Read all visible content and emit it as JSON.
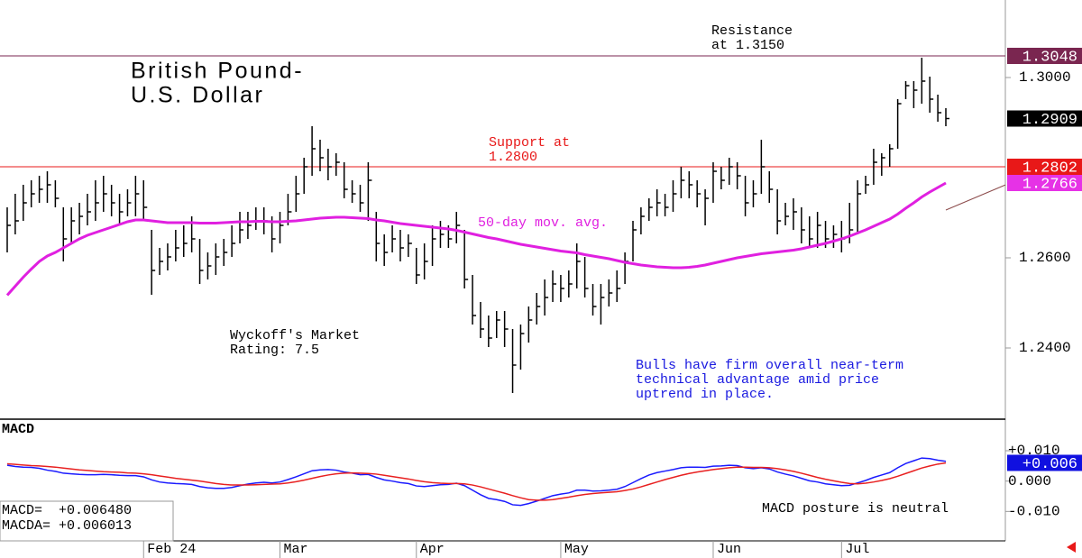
{
  "chart_data": [
    {
      "type": "ohlc",
      "title": [
        "British Pound-",
        "U.S. Dollar"
      ],
      "categories": [
        null,
        null,
        null,
        null,
        null,
        null,
        null,
        null,
        null,
        null,
        null,
        null,
        null,
        null,
        null,
        null,
        null,
        "Feb 24",
        null,
        null,
        null,
        null,
        null,
        null,
        null,
        null,
        null,
        null,
        null,
        null,
        null,
        null,
        null,
        null,
        "Mar",
        null,
        null,
        null,
        null,
        null,
        null,
        null,
        null,
        null,
        null,
        null,
        null,
        null,
        null,
        null,
        null,
        "Apr",
        null,
        null,
        null,
        null,
        null,
        null,
        null,
        null,
        null,
        null,
        null,
        null,
        null,
        null,
        null,
        null,
        null,
        "May",
        null,
        null,
        null,
        null,
        null,
        null,
        null,
        null,
        null,
        null,
        null,
        null,
        null,
        null,
        null,
        null,
        null,
        null,
        "Jun",
        null,
        null,
        null,
        null,
        null,
        null,
        null,
        null,
        null,
        null,
        null,
        null,
        null,
        null,
        null,
        "Jul",
        null,
        null,
        null,
        null,
        null,
        null,
        null,
        null,
        null,
        null,
        null,
        null,
        null
      ],
      "high": [
        1.2712,
        1.2742,
        1.2762,
        1.2772,
        1.2782,
        1.2792,
        1.2772,
        1.2712,
        1.2712,
        1.2722,
        1.2742,
        1.2772,
        1.2782,
        1.2762,
        1.2742,
        1.2752,
        1.2782,
        1.2772,
        1.2662,
        1.2622,
        1.2632,
        1.2662,
        1.2672,
        1.2692,
        1.2642,
        1.2612,
        1.2632,
        1.2642,
        1.2672,
        1.2702,
        1.2702,
        1.2712,
        1.2712,
        1.2692,
        1.2702,
        1.2742,
        1.2782,
        1.2822,
        1.2892,
        1.2862,
        1.2842,
        1.2832,
        1.2812,
        1.2772,
        1.2762,
        1.2812,
        1.2702,
        1.2652,
        1.2672,
        1.2662,
        1.2652,
        1.2622,
        1.2632,
        1.2672,
        1.2682,
        1.2672,
        1.2702,
        1.2662,
        1.2562,
        1.2502,
        1.2472,
        1.2482,
        1.2482,
        1.2442,
        1.2452,
        1.2492,
        1.2522,
        1.2552,
        1.2572,
        1.2562,
        1.2572,
        1.2632,
        1.2602,
        1.2542,
        1.2542,
        1.2552,
        1.2572,
        1.2612,
        1.2682,
        1.2712,
        1.2732,
        1.2752,
        1.2742,
        1.2772,
        1.2802,
        1.2792,
        1.2772,
        1.2752,
        1.2812,
        1.2802,
        1.2822,
        1.2812,
        1.2782,
        1.2772,
        1.2862,
        1.2792,
        1.2752,
        1.2722,
        1.2732,
        1.2712,
        1.2692,
        1.2702,
        1.2682,
        1.2672,
        1.2682,
        1.2722,
        1.2772,
        1.2782,
        1.2842,
        1.2832,
        1.2852,
        1.2952,
        1.2992,
        1.2992,
        1.3044,
        1.3002,
        1.2962,
        1.2932
      ],
      "low": [
        1.2612,
        1.2652,
        1.2682,
        1.2712,
        1.2722,
        1.2722,
        1.2712,
        1.2592,
        1.2632,
        1.2652,
        1.2672,
        1.2682,
        1.2702,
        1.2692,
        1.2672,
        1.2692,
        1.2692,
        1.2682,
        1.2518,
        1.2562,
        1.2572,
        1.2592,
        1.2602,
        1.2612,
        1.2542,
        1.2552,
        1.2562,
        1.2582,
        1.2602,
        1.2632,
        1.2642,
        1.2662,
        1.2652,
        1.2612,
        1.2632,
        1.2672,
        1.2702,
        1.2742,
        1.2782,
        1.2792,
        1.2772,
        1.2782,
        1.2732,
        1.2722,
        1.2702,
        1.2682,
        1.2592,
        1.2582,
        1.2612,
        1.2592,
        1.2602,
        1.2542,
        1.2552,
        1.2582,
        1.2622,
        1.2622,
        1.2632,
        1.2532,
        1.2452,
        1.2422,
        1.2402,
        1.2422,
        1.2402,
        1.23,
        1.2352,
        1.2412,
        1.2452,
        1.2472,
        1.2502,
        1.2502,
        1.2512,
        1.2532,
        1.2512,
        1.2472,
        1.2452,
        1.2492,
        1.2502,
        1.2542,
        1.2592,
        1.2652,
        1.2682,
        1.2692,
        1.2692,
        1.2702,
        1.2732,
        1.2732,
        1.2712,
        1.2672,
        1.2722,
        1.2752,
        1.2762,
        1.2752,
        1.2692,
        1.2712,
        1.2742,
        1.2722,
        1.2652,
        1.2672,
        1.2662,
        1.2632,
        1.2622,
        1.2622,
        1.2622,
        1.2622,
        1.2612,
        1.2632,
        1.2652,
        1.2742,
        1.2762,
        1.2782,
        1.2802,
        1.2842,
        1.2952,
        1.2932,
        1.2942,
        1.2922,
        1.2902,
        1.2892
      ],
      "close": [
        1.2672,
        1.2682,
        1.2722,
        1.2742,
        1.2752,
        1.2762,
        1.2732,
        1.2642,
        1.2682,
        1.2692,
        1.2702,
        1.2722,
        1.2742,
        1.2722,
        1.2702,
        1.2722,
        1.2742,
        1.2712,
        1.2572,
        1.2592,
        1.2602,
        1.2622,
        1.2632,
        1.2642,
        1.2572,
        1.2582,
        1.2602,
        1.2612,
        1.2632,
        1.2662,
        1.2672,
        1.2682,
        1.2682,
        1.2642,
        1.2672,
        1.2702,
        1.2742,
        1.2802,
        1.2842,
        1.2822,
        1.2802,
        1.2812,
        1.2752,
        1.2742,
        1.2722,
        1.2772,
        1.2632,
        1.2612,
        1.2642,
        1.2622,
        1.2632,
        1.2562,
        1.2592,
        1.2642,
        1.2652,
        1.2642,
        1.2672,
        1.2552,
        1.2472,
        1.2442,
        1.2422,
        1.2462,
        1.2442,
        1.2362,
        1.2432,
        1.2462,
        1.2492,
        1.2512,
        1.2542,
        1.2532,
        1.2542,
        1.2592,
        1.2532,
        1.2492,
        1.2512,
        1.2522,
        1.2532,
        1.2592,
        1.2662,
        1.2692,
        1.2712,
        1.2722,
        1.2712,
        1.2742,
        1.2772,
        1.2762,
        1.2742,
        1.2732,
        1.2792,
        1.2772,
        1.2802,
        1.2782,
        1.2722,
        1.2742,
        1.2802,
        1.2752,
        1.2682,
        1.2692,
        1.2702,
        1.2662,
        1.2642,
        1.2672,
        1.2642,
        1.2652,
        1.2642,
        1.2662,
        1.2742,
        1.2762,
        1.2812,
        1.2822,
        1.2842,
        1.2942,
        1.2982,
        1.2972,
        1.2992,
        1.2952,
        1.2922,
        1.2909
      ],
      "color": "#000000",
      "series": [
        {
          "name": "50-day mov. avg.",
          "color": "#e020e0",
          "values": [
            1.2517,
            1.2537,
            1.2557,
            1.2575,
            1.2592,
            1.2604,
            1.2612,
            1.2622,
            1.2632,
            1.2642,
            1.265,
            1.2656,
            1.2662,
            1.2668,
            1.2674,
            1.268,
            1.2684,
            1.2684,
            1.2682,
            1.268,
            1.2678,
            1.2678,
            1.2678,
            1.2678,
            1.2677,
            1.2677,
            1.2677,
            1.2678,
            1.2679,
            1.268,
            1.268,
            1.2681,
            1.2681,
            1.268,
            1.268,
            1.2681,
            1.2682,
            1.2684,
            1.2686,
            1.2688,
            1.2689,
            1.269,
            1.269,
            1.2689,
            1.2688,
            1.2687,
            1.2684,
            1.2682,
            1.2679,
            1.2676,
            1.2674,
            1.2672,
            1.267,
            1.2668,
            1.2666,
            1.2664,
            1.2661,
            1.2657,
            1.2653,
            1.2649,
            1.2645,
            1.2642,
            1.2638,
            1.2634,
            1.263,
            1.2627,
            1.2624,
            1.2621,
            1.2618,
            1.2615,
            1.2613,
            1.2611,
            1.2607,
            1.2604,
            1.2601,
            1.2598,
            1.2594,
            1.259,
            1.2587,
            1.2584,
            1.2582,
            1.258,
            1.2579,
            1.2578,
            1.2578,
            1.2579,
            1.2581,
            1.2584,
            1.2588,
            1.2592,
            1.2596,
            1.26,
            1.2603,
            1.2606,
            1.2609,
            1.2611,
            1.2613,
            1.2615,
            1.2617,
            1.262,
            1.2624,
            1.2628,
            1.2632,
            1.2637,
            1.2642,
            1.2648,
            1.2655,
            1.2662,
            1.267,
            1.2678,
            1.2686,
            1.2697,
            1.271,
            1.2722,
            1.2735,
            1.2746,
            1.2756,
            1.2766
          ]
        },
        {
          "color": "#8b4a4a",
          "extend_right": true,
          "values": [
            null,
            null,
            null,
            null,
            null,
            null,
            null,
            null,
            null,
            null,
            null,
            null,
            null,
            null,
            null,
            null,
            null,
            null,
            null,
            null,
            null,
            null,
            null,
            null,
            null,
            null,
            null,
            null,
            null,
            null,
            null,
            null,
            null,
            null,
            null,
            null,
            null,
            null,
            null,
            null,
            null,
            null,
            null,
            null,
            null,
            null,
            null,
            null,
            null,
            null,
            null,
            null,
            null,
            null,
            null,
            null,
            null,
            null,
            null,
            null,
            null,
            null,
            null,
            1.23,
            null,
            null,
            null,
            null,
            null,
            null,
            null,
            null,
            null,
            null,
            null,
            null,
            null,
            null,
            null,
            null,
            null,
            null,
            null,
            null,
            null,
            null,
            null,
            null,
            null,
            null,
            null,
            null,
            null,
            null,
            null,
            null,
            null,
            null,
            null,
            null,
            null,
            null,
            null,
            null,
            null,
            null,
            null,
            null,
            null,
            null,
            null,
            null,
            null,
            null,
            null,
            null,
            null,
            1.2706
          ]
        }
      ],
      "ylim": [
        1.2242,
        1.3172
      ],
      "yticks": [
        {
          "value": 1.3,
          "label": "1.3000"
        },
        {
          "value": 1.26,
          "label": "1.2600"
        },
        {
          "value": 1.24,
          "label": "1.2400"
        }
      ],
      "price_tags": [
        {
          "value": 1.3048,
          "label": "1.3048",
          "color": "#7a2650",
          "line": true
        },
        {
          "value": 1.2909,
          "label": "1.2909",
          "color": "#000000"
        },
        {
          "value": 1.2802,
          "label": "1.2802",
          "color": "#e81818",
          "line": true
        },
        {
          "value": 1.2766,
          "label": "1.2766",
          "color": "#e632e6"
        }
      ],
      "annotations": [
        {
          "lines": [
            "Resistance",
            "at 1.3150"
          ],
          "color": "#000000"
        },
        {
          "lines": [
            "Support at",
            "1.2800"
          ],
          "color": "#e81818"
        },
        {
          "lines": [
            "Wyckoff's Market",
            "Rating: 7.5"
          ],
          "color": "#000000"
        },
        {
          "lines": [
            "Bulls have firm overall near-term",
            "technical advantage amid price",
            "uptrend in place."
          ],
          "color": "#1a1ae0"
        }
      ]
    },
    {
      "type": "line",
      "title": "MACD",
      "series": [
        {
          "color": "#1a1aff",
          "values": [
            0.0052,
            0.0048,
            0.0046,
            0.0045,
            0.0042,
            0.0036,
            0.0032,
            0.0026,
            0.0024,
            0.0022,
            0.0021,
            0.0021,
            0.0022,
            0.0021,
            0.0019,
            0.0018,
            0.0018,
            0.0014,
            0.0004,
            -0.0003,
            -0.0006,
            -0.0008,
            -0.0009,
            -0.0011,
            -0.0018,
            -0.0022,
            -0.0024,
            -0.0024,
            -0.0021,
            -0.0015,
            -0.001,
            -0.0006,
            -0.0004,
            -0.0006,
            -0.0003,
            0.0005,
            0.0014,
            0.0024,
            0.0034,
            0.0037,
            0.0038,
            0.0036,
            0.003,
            0.0026,
            0.0021,
            0.0022,
            0.0012,
            0.0004,
            0.0,
            -0.0005,
            -0.0008,
            -0.0016,
            -0.0018,
            -0.0015,
            -0.0012,
            -0.0011,
            -0.0007,
            -0.0015,
            -0.003,
            -0.0045,
            -0.0057,
            -0.0061,
            -0.0067,
            -0.0078,
            -0.008,
            -0.0074,
            -0.0066,
            -0.0057,
            -0.0048,
            -0.0043,
            -0.0039,
            -0.003,
            -0.003,
            -0.0033,
            -0.0032,
            -0.003,
            -0.0027,
            -0.0018,
            -0.0005,
            0.0008,
            0.002,
            0.0028,
            0.0033,
            0.0038,
            0.0044,
            0.0046,
            0.0046,
            0.0045,
            0.0049,
            0.005,
            0.0052,
            0.0051,
            0.0044,
            0.0041,
            0.0044,
            0.004,
            0.003,
            0.0023,
            0.0017,
            0.0009,
            0.0001,
            -0.0003,
            -0.0009,
            -0.0012,
            -0.0015,
            -0.0014,
            -0.0006,
            0.0002,
            0.0012,
            0.002,
            0.0028,
            0.0044,
            0.0058,
            0.0067,
            0.0076,
            0.0074,
            0.0069,
            0.0065
          ]
        },
        {
          "color": "#e82020",
          "values": [
            0.0057,
            0.0055,
            0.0053,
            0.0051,
            0.005,
            0.0048,
            0.0046,
            0.0043,
            0.004,
            0.0037,
            0.0035,
            0.0033,
            0.0031,
            0.003,
            0.0029,
            0.0027,
            0.0026,
            0.0024,
            0.0021,
            0.0017,
            0.0013,
            0.0009,
            0.0006,
            0.0003,
            0.0,
            -0.0004,
            -0.0008,
            -0.0011,
            -0.0013,
            -0.0013,
            -0.0013,
            -0.0012,
            -0.0011,
            -0.001,
            -0.0009,
            -0.0006,
            -0.0002,
            0.0003,
            0.0009,
            0.0015,
            0.002,
            0.0024,
            0.0026,
            0.0027,
            0.0026,
            0.0025,
            0.0023,
            0.0019,
            0.0015,
            0.0011,
            0.0007,
            0.0002,
            -0.0002,
            -0.0005,
            -0.0007,
            -0.0008,
            -0.0008,
            -0.0009,
            -0.0013,
            -0.0019,
            -0.0026,
            -0.0033,
            -0.004,
            -0.0048,
            -0.0055,
            -0.0061,
            -0.0063,
            -0.0063,
            -0.0061,
            -0.0057,
            -0.0053,
            -0.0048,
            -0.0044,
            -0.0041,
            -0.0039,
            -0.0037,
            -0.0035,
            -0.0031,
            -0.0026,
            -0.0019,
            -0.0011,
            -0.0003,
            0.0005,
            0.0012,
            0.0019,
            0.0025,
            0.003,
            0.0034,
            0.0038,
            0.0041,
            0.0044,
            0.0046,
            0.0046,
            0.0045,
            0.0045,
            0.0044,
            0.0041,
            0.0037,
            0.0032,
            0.0026,
            0.0019,
            0.0012,
            0.0006,
            0.0001,
            -0.0004,
            -0.0008,
            -0.0009,
            -0.0007,
            -0.0003,
            0.0002,
            0.0008,
            0.0016,
            0.0025,
            0.0034,
            0.0043,
            0.005,
            0.0056,
            0.006
          ]
        }
      ],
      "ylim": [
        -0.0197,
        0.0204
      ],
      "yticks": [
        {
          "value": 0.01,
          "label": "+0.010"
        },
        {
          "value": 0,
          "label": "0.000"
        },
        {
          "value": -0.01,
          "label": "-0.010"
        }
      ],
      "price_tags": [
        {
          "value": 0.006,
          "label": "+0.006",
          "color": "#1010e0"
        }
      ],
      "readout": [
        "MACD=  +0.006480",
        "MACDA= +0.006013"
      ],
      "annotations": [
        {
          "lines": [
            "MACD posture is neutral"
          ],
          "color": "#000000"
        }
      ]
    }
  ]
}
